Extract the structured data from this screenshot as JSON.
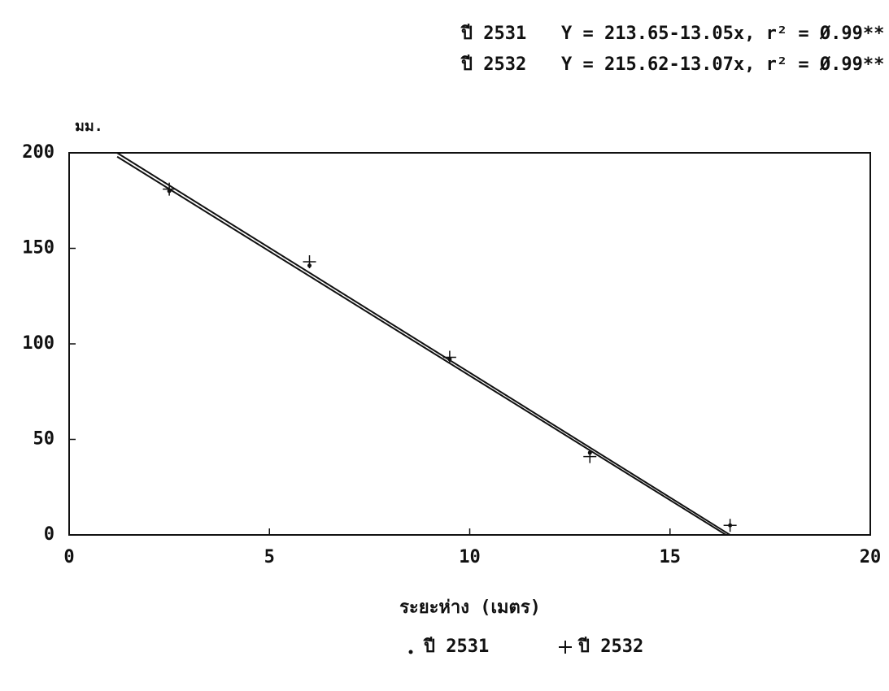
{
  "chart_data": {
    "type": "scatter",
    "annotations": [
      {
        "year": "ปี 2531",
        "equation": "Y = 213.65-13.05x, r² = Ø.99**"
      },
      {
        "year": "ปี 2532",
        "equation": "Y = 215.62-13.07x, r² = Ø.99**"
      }
    ],
    "y_unit": "มม.",
    "x_label": "ระยะห่าง (เมตร)",
    "xlim": [
      0,
      20
    ],
    "ylim": [
      0,
      200
    ],
    "xticks": [
      0,
      5,
      10,
      15,
      20
    ],
    "yticks": [
      0,
      50,
      100,
      150,
      200
    ],
    "series": [
      {
        "name": "ปี 2531",
        "marker": "dot",
        "color": "#111111",
        "x": [
          2.5,
          6,
          9.5,
          13,
          16.5
        ],
        "values": [
          180,
          141,
          92,
          43,
          5
        ],
        "fit": {
          "x": [
            1.2,
            16.4
          ],
          "values": [
            197.99,
            0
          ]
        }
      },
      {
        "name": "ปี 2532",
        "marker": "plus",
        "color": "#111111",
        "x": [
          2.5,
          6,
          9.5,
          13,
          16.5
        ],
        "values": [
          181,
          143,
          93,
          41,
          5
        ],
        "fit": {
          "x": [
            1.2,
            16.5
          ],
          "values": [
            199.94,
            0
          ]
        }
      }
    ]
  }
}
